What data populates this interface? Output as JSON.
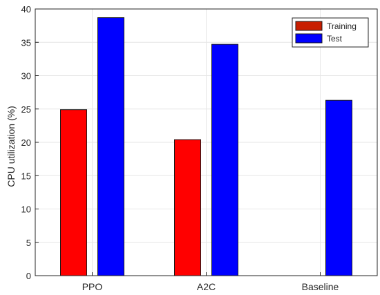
{
  "chart_data": {
    "type": "bar",
    "categories": [
      "PPO",
      "A2C",
      "Baseline"
    ],
    "series": [
      {
        "name": "Training",
        "values": [
          24.9,
          20.4,
          null
        ],
        "color": "#ff0000",
        "legend_color": "#c81e00"
      },
      {
        "name": "Test",
        "values": [
          38.7,
          34.7,
          26.3
        ],
        "color": "#0000ff",
        "legend_color": "#0000ff"
      }
    ],
    "ylabel": "CPU utilization (%)",
    "xlabel": "",
    "ylim": [
      0,
      40
    ],
    "yticks": [
      0,
      5,
      10,
      15,
      20,
      25,
      30,
      35,
      40
    ],
    "grid": true,
    "legend_position": "top-right"
  }
}
